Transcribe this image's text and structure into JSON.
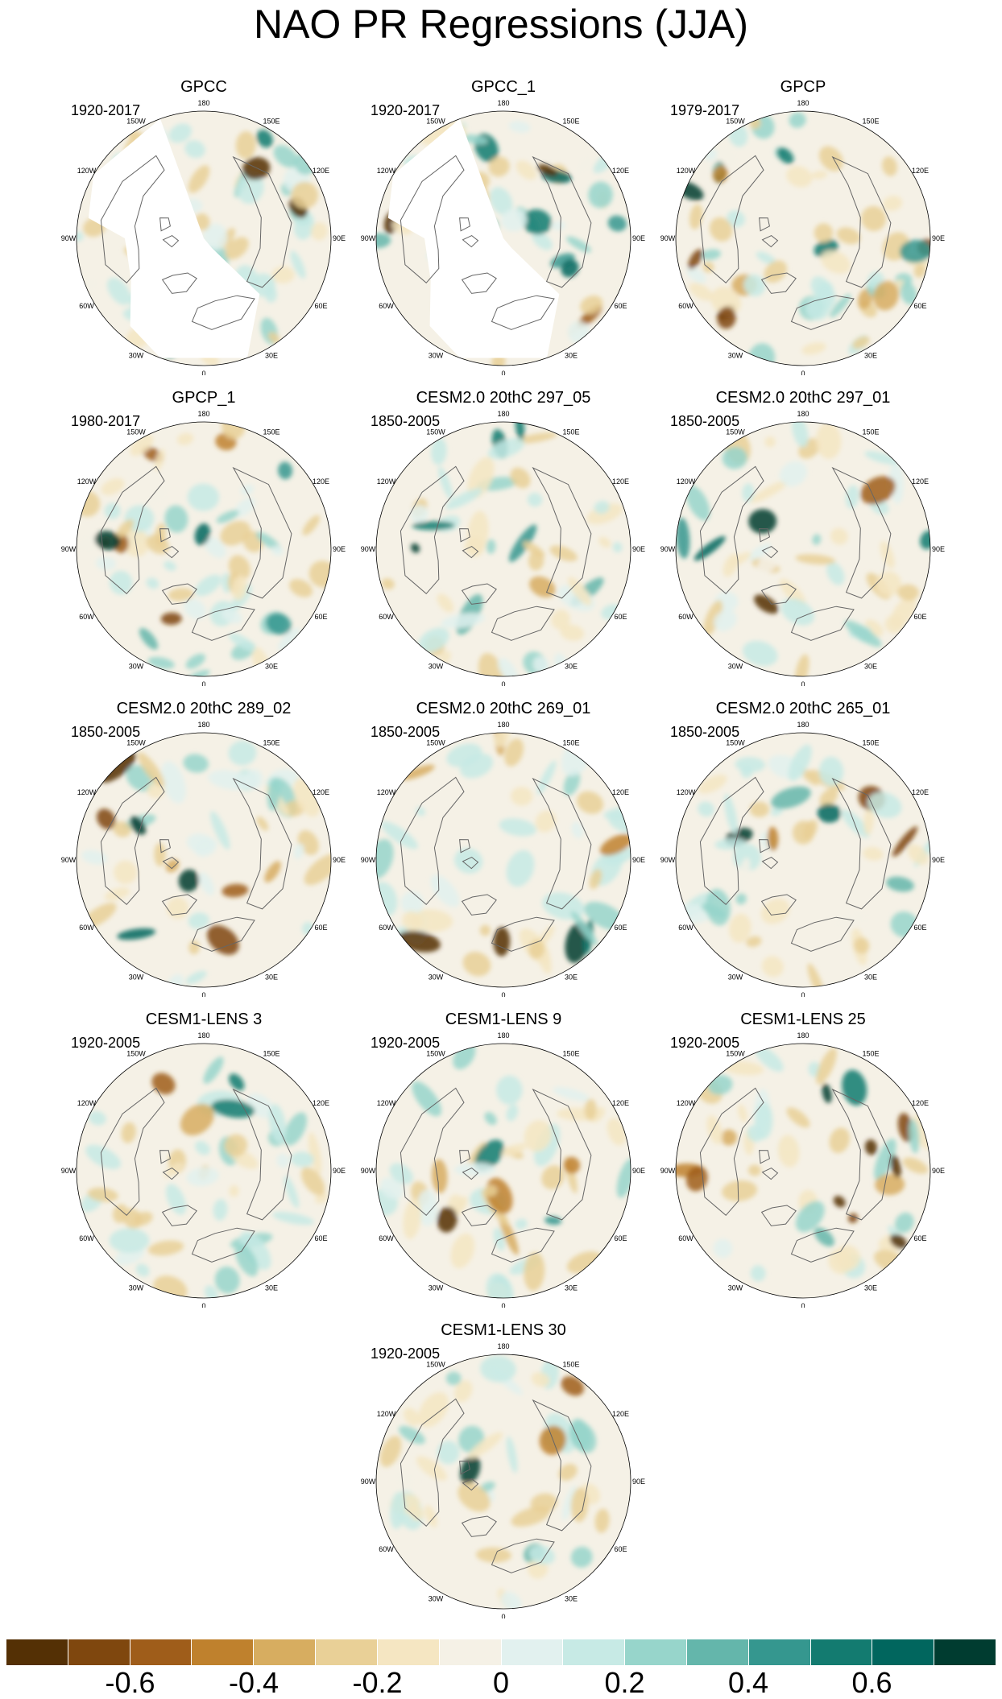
{
  "title": "NAO PR Regressions (JJA)",
  "panels": [
    {
      "title": "GPCC",
      "period": "1920-2017",
      "style": "obs_missing",
      "seed": 11
    },
    {
      "title": "GPCC_1",
      "period": "1920-2017",
      "style": "obs_missing",
      "seed": 12
    },
    {
      "title": "GPCP",
      "period": "1979-2017",
      "style": "obs",
      "seed": 13
    },
    {
      "title": "GPCP_1",
      "period": "1980-2017",
      "style": "obs",
      "seed": 14
    },
    {
      "title": "CESM2.0 20thC 297_05",
      "period": "1850-2005",
      "style": "model",
      "seed": 15
    },
    {
      "title": "CESM2.0 20thC 297_01",
      "period": "1850-2005",
      "style": "model",
      "seed": 16
    },
    {
      "title": "CESM2.0 20thC 289_02",
      "period": "1850-2005",
      "style": "model",
      "seed": 17
    },
    {
      "title": "CESM2.0 20thC 269_01",
      "period": "1850-2005",
      "style": "model",
      "seed": 18
    },
    {
      "title": "CESM2.0 20thC 265_01",
      "period": "1850-2005",
      "style": "model",
      "seed": 19
    },
    {
      "title": "CESM1-LENS 3",
      "period": "1920-2005",
      "style": "model",
      "seed": 20
    },
    {
      "title": "CESM1-LENS 9",
      "period": "1920-2005",
      "style": "model",
      "seed": 21
    },
    {
      "title": "CESM1-LENS 25",
      "period": "1920-2005",
      "style": "model",
      "seed": 22
    },
    {
      "title": "CESM1-LENS 30",
      "period": "1920-2005",
      "style": "model",
      "seed": 23
    }
  ],
  "longitude_labels": [
    "180",
    "150E",
    "120E",
    "90E",
    "60E",
    "30E",
    "0",
    "30W",
    "60W",
    "90W",
    "120W",
    "150W"
  ],
  "longitude_angles_deg": [
    180,
    150,
    120,
    90,
    60,
    30,
    0,
    -30,
    -60,
    -90,
    -120,
    -150
  ],
  "colorbar": {
    "colors": [
      "#543005",
      "#7f470e",
      "#9f5d1a",
      "#bf812d",
      "#d7ad60",
      "#e9d097",
      "#f5e6c2",
      "#f5f1e6",
      "#e2f1ef",
      "#c7eae5",
      "#97d5cb",
      "#64b6ab",
      "#35978f",
      "#137b70",
      "#01665e",
      "#003c30"
    ],
    "labels": [
      "-0.6",
      "-0.4",
      "-0.2",
      "0",
      "0.2",
      "0.4",
      "0.6"
    ],
    "label_boundary_index": [
      2,
      4,
      6,
      8,
      10,
      12,
      14
    ]
  },
  "map_colors": {
    "coastline": "#666666",
    "missing": "#ffffff"
  }
}
